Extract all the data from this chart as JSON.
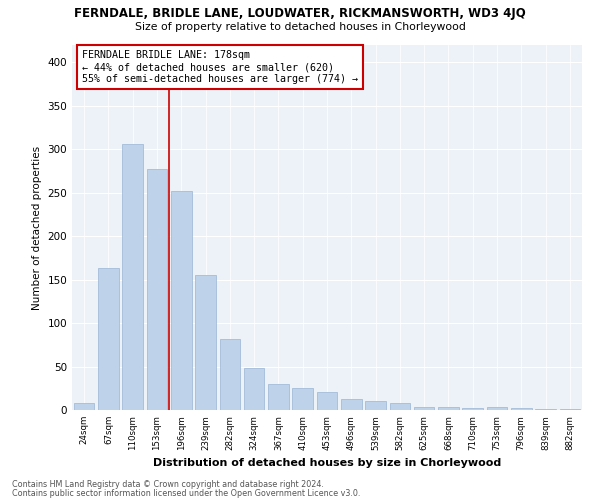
{
  "title": "FERNDALE, BRIDLE LANE, LOUDWATER, RICKMANSWORTH, WD3 4JQ",
  "subtitle": "Size of property relative to detached houses in Chorleywood",
  "xlabel": "Distribution of detached houses by size in Chorleywood",
  "ylabel": "Number of detached properties",
  "footnote1": "Contains HM Land Registry data © Crown copyright and database right 2024.",
  "footnote2": "Contains public sector information licensed under the Open Government Licence v3.0.",
  "annotation_title": "FERNDALE BRIDLE LANE: 178sqm",
  "annotation_line1": "← 44% of detached houses are smaller (620)",
  "annotation_line2": "55% of semi-detached houses are larger (774) →",
  "categories": [
    "24sqm",
    "67sqm",
    "110sqm",
    "153sqm",
    "196sqm",
    "239sqm",
    "282sqm",
    "324sqm",
    "367sqm",
    "410sqm",
    "453sqm",
    "496sqm",
    "539sqm",
    "582sqm",
    "625sqm",
    "668sqm",
    "710sqm",
    "753sqm",
    "796sqm",
    "839sqm",
    "882sqm"
  ],
  "values": [
    8,
    163,
    306,
    277,
    252,
    155,
    82,
    48,
    30,
    25,
    21,
    13,
    10,
    8,
    4,
    4,
    2,
    4,
    2,
    1,
    1
  ],
  "bar_color": "#bed3ea",
  "vline_color": "#cc0000",
  "vline_x": 3.5,
  "annotation_box_color": "#cc0000",
  "background_color": "#edf2f9",
  "ylim": [
    0,
    420
  ],
  "yticks": [
    0,
    50,
    100,
    150,
    200,
    250,
    300,
    350,
    400
  ]
}
